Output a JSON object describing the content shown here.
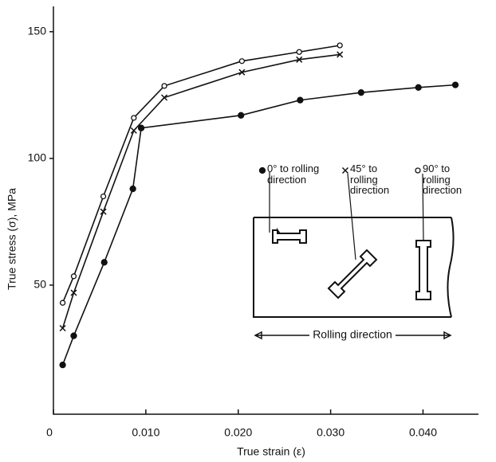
{
  "chart_data": {
    "type": "line",
    "x_label": "True strain (ε)",
    "y_label": "True stress (σ), MPa",
    "xlim": [
      0,
      0.046
    ],
    "ylim": [
      0,
      160
    ],
    "xticks": [
      0,
      {
        "value": 0.01,
        "label": "0.010"
      },
      {
        "value": 0.02,
        "label": "0.020"
      },
      {
        "value": 0.03,
        "label": "0.030"
      },
      {
        "value": 0.04,
        "label": "0.040"
      }
    ],
    "yticks": [
      50,
      100,
      150
    ],
    "series": [
      {
        "name": "0° to rolling direction",
        "color": "#111111",
        "marker": "filled-circle",
        "x": [
          0.001,
          0.0022,
          0.0055,
          0.0086,
          0.0095,
          0.0203,
          0.0267,
          0.0333,
          0.0395,
          0.0435
        ],
        "values": [
          18.5,
          30,
          59,
          88,
          112,
          117,
          123,
          126,
          128,
          129
        ]
      },
      {
        "name": "45° to rolling direction",
        "color": "#111111",
        "marker": "cross",
        "x": [
          0.001,
          0.0022,
          0.0054,
          0.0087,
          0.012,
          0.0204,
          0.0266,
          0.031
        ],
        "values": [
          33,
          47,
          79,
          111,
          124,
          134,
          139,
          141
        ]
      },
      {
        "name": "90° to rolling direction",
        "color": "#111111",
        "marker": "open-circle",
        "x": [
          0.001,
          0.0022,
          0.0054,
          0.0087,
          0.012,
          0.0204,
          0.0266,
          0.031
        ],
        "values": [
          43,
          53.5,
          85,
          116,
          128.6,
          138.4,
          142,
          144.6
        ]
      }
    ],
    "inset_label": "Rolling direction"
  }
}
